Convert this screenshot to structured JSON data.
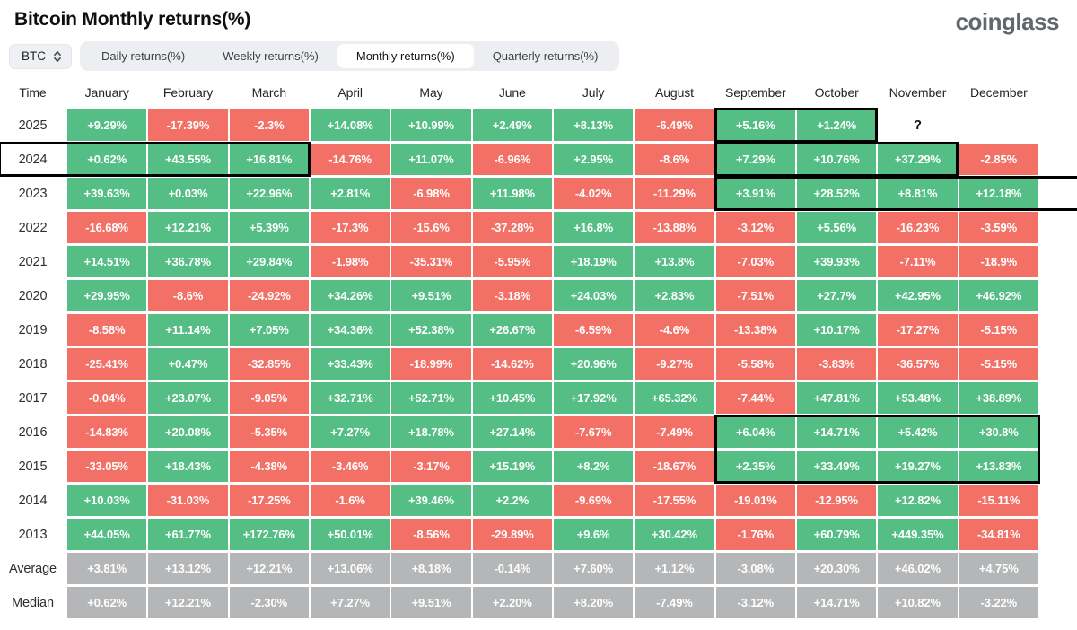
{
  "title": "Bitcoin Monthly returns(%)",
  "logo": "coinglass",
  "colors": {
    "green": "#54be85",
    "red": "#f27066",
    "gray": "#b5b6b7",
    "highlight": "#000000",
    "tab_bar_bg": "#eceef2",
    "active_tab_bg": "#ffffff"
  },
  "controls": {
    "symbol": "BTC",
    "tabs": [
      {
        "label": "Daily returns(%)",
        "active": false
      },
      {
        "label": "Weekly returns(%)",
        "active": false
      },
      {
        "label": "Monthly returns(%)",
        "active": true
      },
      {
        "label": "Quarterly returns(%)",
        "active": false
      }
    ]
  },
  "table": {
    "time_header": "Time",
    "months": [
      "January",
      "February",
      "March",
      "April",
      "May",
      "June",
      "July",
      "August",
      "September",
      "October",
      "November",
      "December"
    ],
    "rows": [
      {
        "label": "2025",
        "type": "year",
        "cells": [
          "+9.29%",
          "-17.39%",
          "-2.3%",
          "+14.08%",
          "+10.99%",
          "+2.49%",
          "+8.13%",
          "-6.49%",
          "+5.16%",
          "+1.24%",
          "?",
          ""
        ]
      },
      {
        "label": "2024",
        "type": "year",
        "cells": [
          "+0.62%",
          "+43.55%",
          "+16.81%",
          "-14.76%",
          "+11.07%",
          "-6.96%",
          "+2.95%",
          "-8.6%",
          "+7.29%",
          "+10.76%",
          "+37.29%",
          "-2.85%"
        ]
      },
      {
        "label": "2023",
        "type": "year",
        "cells": [
          "+39.63%",
          "+0.03%",
          "+22.96%",
          "+2.81%",
          "-6.98%",
          "+11.98%",
          "-4.02%",
          "-11.29%",
          "+3.91%",
          "+28.52%",
          "+8.81%",
          "+12.18%"
        ]
      },
      {
        "label": "2022",
        "type": "year",
        "cells": [
          "-16.68%",
          "+12.21%",
          "+5.39%",
          "-17.3%",
          "-15.6%",
          "-37.28%",
          "+16.8%",
          "-13.88%",
          "-3.12%",
          "+5.56%",
          "-16.23%",
          "-3.59%"
        ]
      },
      {
        "label": "2021",
        "type": "year",
        "cells": [
          "+14.51%",
          "+36.78%",
          "+29.84%",
          "-1.98%",
          "-35.31%",
          "-5.95%",
          "+18.19%",
          "+13.8%",
          "-7.03%",
          "+39.93%",
          "-7.11%",
          "-18.9%"
        ]
      },
      {
        "label": "2020",
        "type": "year",
        "cells": [
          "+29.95%",
          "-8.6%",
          "-24.92%",
          "+34.26%",
          "+9.51%",
          "-3.18%",
          "+24.03%",
          "+2.83%",
          "-7.51%",
          "+27.7%",
          "+42.95%",
          "+46.92%"
        ]
      },
      {
        "label": "2019",
        "type": "year",
        "cells": [
          "-8.58%",
          "+11.14%",
          "+7.05%",
          "+34.36%",
          "+52.38%",
          "+26.67%",
          "-6.59%",
          "-4.6%",
          "-13.38%",
          "+10.17%",
          "-17.27%",
          "-5.15%"
        ]
      },
      {
        "label": "2018",
        "type": "year",
        "cells": [
          "-25.41%",
          "+0.47%",
          "-32.85%",
          "+33.43%",
          "-18.99%",
          "-14.62%",
          "+20.96%",
          "-9.27%",
          "-5.58%",
          "-3.83%",
          "-36.57%",
          "-5.15%"
        ]
      },
      {
        "label": "2017",
        "type": "year",
        "cells": [
          "-0.04%",
          "+23.07%",
          "-9.05%",
          "+32.71%",
          "+52.71%",
          "+10.45%",
          "+17.92%",
          "+65.32%",
          "-7.44%",
          "+47.81%",
          "+53.48%",
          "+38.89%"
        ]
      },
      {
        "label": "2016",
        "type": "year",
        "cells": [
          "-14.83%",
          "+20.08%",
          "-5.35%",
          "+7.27%",
          "+18.78%",
          "+27.14%",
          "-7.67%",
          "-7.49%",
          "+6.04%",
          "+14.71%",
          "+5.42%",
          "+30.8%"
        ]
      },
      {
        "label": "2015",
        "type": "year",
        "cells": [
          "-33.05%",
          "+18.43%",
          "-4.38%",
          "-3.46%",
          "-3.17%",
          "+15.19%",
          "+8.2%",
          "-18.67%",
          "+2.35%",
          "+33.49%",
          "+19.27%",
          "+13.83%"
        ]
      },
      {
        "label": "2014",
        "type": "year",
        "cells": [
          "+10.03%",
          "-31.03%",
          "-17.25%",
          "-1.6%",
          "+39.46%",
          "+2.2%",
          "-9.69%",
          "-17.55%",
          "-19.01%",
          "-12.95%",
          "+12.82%",
          "-15.11%"
        ]
      },
      {
        "label": "2013",
        "type": "year",
        "cells": [
          "+44.05%",
          "+61.77%",
          "+172.76%",
          "+50.01%",
          "-8.56%",
          "-29.89%",
          "+9.6%",
          "+30.42%",
          "-1.76%",
          "+60.79%",
          "+449.35%",
          "-34.81%"
        ]
      },
      {
        "label": "Average",
        "type": "aggregate",
        "cells": [
          "+3.81%",
          "+13.12%",
          "+12.21%",
          "+13.06%",
          "+8.18%",
          "-0.14%",
          "+7.60%",
          "+1.12%",
          "-3.08%",
          "+20.30%",
          "+46.02%",
          "+4.75%"
        ]
      },
      {
        "label": "Median",
        "type": "aggregate",
        "cells": [
          "+0.62%",
          "+12.21%",
          "-2.30%",
          "+7.27%",
          "+9.51%",
          "+2.20%",
          "+8.20%",
          "-7.49%",
          "-3.12%",
          "+14.71%",
          "+10.82%",
          "-3.22%"
        ]
      }
    ]
  },
  "annotations": {
    "highlight_boxes": [
      {
        "label": "2024-time-through-march",
        "rows": [
          2,
          2
        ],
        "cols": [
          1,
          4
        ],
        "open_right": false
      },
      {
        "label": "2025-september-october",
        "rows": [
          1,
          1
        ],
        "cols": [
          10,
          11
        ],
        "open_right": false
      },
      {
        "label": "2024-september-november",
        "rows": [
          2,
          2
        ],
        "cols": [
          10,
          12
        ],
        "open_right": false
      },
      {
        "label": "2023-september-to-edge",
        "rows": [
          3,
          3
        ],
        "cols": [
          10,
          13
        ],
        "open_right": true
      },
      {
        "label": "2016-2015-september-december",
        "rows": [
          10,
          11
        ],
        "cols": [
          10,
          13
        ],
        "open_right": false
      }
    ]
  }
}
